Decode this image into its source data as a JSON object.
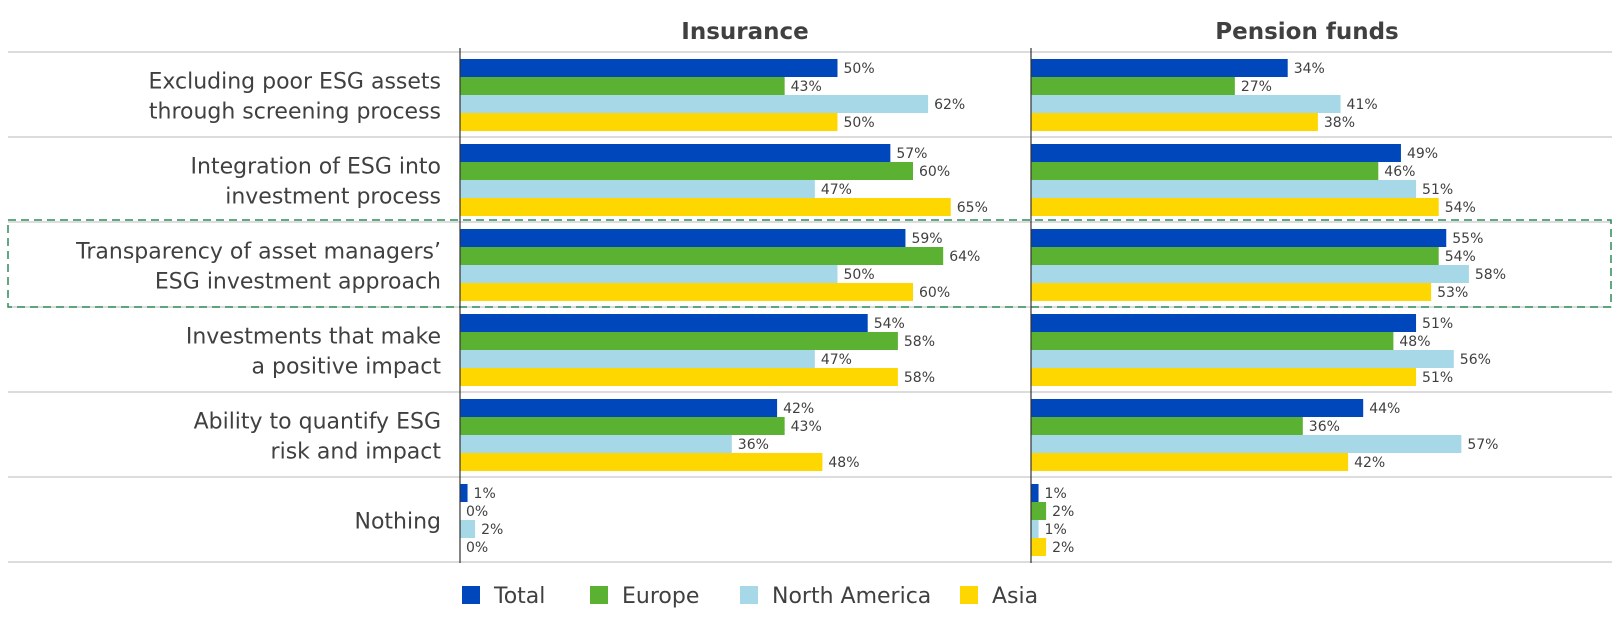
{
  "chart_data": {
    "type": "bar",
    "orientation": "horizontal",
    "panels": [
      {
        "title": "Insurance"
      },
      {
        "title": "Pension funds"
      }
    ],
    "categories": [
      [
        "Excluding poor ESG assets",
        "through screening process"
      ],
      [
        "Integration of ESG into",
        "investment process"
      ],
      [
        "Transparency of asset managers’",
        "ESG investment approach"
      ],
      [
        "Investments that make",
        "a positive impact"
      ],
      [
        "Ability to quantify ESG",
        "risk and impact"
      ],
      [
        "Nothing"
      ]
    ],
    "highlighted_category_index": 2,
    "series": [
      {
        "name": "Total",
        "color": "#0047BB",
        "insurance": [
          50,
          57,
          59,
          54,
          42,
          1
        ],
        "pension_funds": [
          34,
          49,
          55,
          51,
          44,
          1
        ]
      },
      {
        "name": "Europe",
        "color": "#5AB132",
        "insurance": [
          43,
          60,
          64,
          58,
          43,
          0
        ],
        "pension_funds": [
          27,
          46,
          54,
          48,
          36,
          2
        ]
      },
      {
        "name": "North America",
        "color": "#A6D8E7",
        "insurance": [
          62,
          47,
          50,
          47,
          36,
          2
        ],
        "pension_funds": [
          41,
          51,
          58,
          56,
          57,
          1
        ]
      },
      {
        "name": "Asia",
        "color": "#FFD700",
        "insurance": [
          50,
          65,
          60,
          58,
          48,
          0
        ],
        "pension_funds": [
          38,
          54,
          53,
          51,
          42,
          2
        ]
      }
    ],
    "value_suffix": "%",
    "xlim": [
      0,
      100
    ],
    "legend_position": "bottom",
    "grid": false,
    "highlight_color": "#2E8B57"
  }
}
